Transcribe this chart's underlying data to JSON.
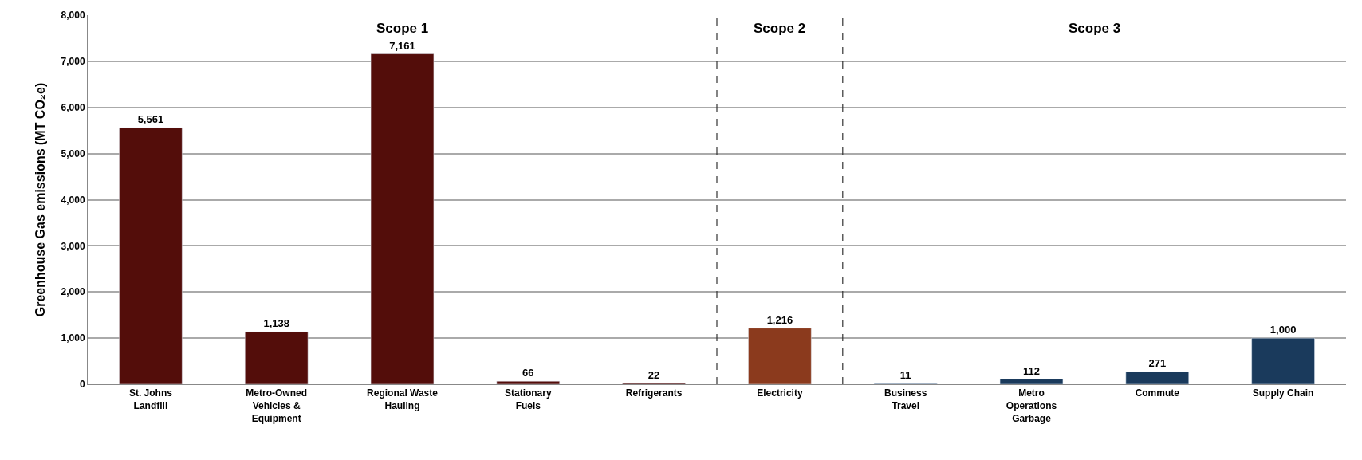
{
  "chart_data": {
    "type": "bar",
    "ylabel": "Greenhouse Gas emissions (MT CO₂e)",
    "categories": [
      "St. Johns Landfill",
      "Metro-Owned Vehicles & Equipment",
      "Regional Waste Hauling",
      "Stationary Fuels",
      "Refrigerants",
      "Electricity",
      "Business Travel",
      "Metro Operations Garbage",
      "Commute",
      "Supply Chain"
    ],
    "values": [
      5561,
      1138,
      7161,
      66,
      22,
      1216,
      11,
      112,
      271,
      1000
    ],
    "colors": [
      "#530d0a",
      "#530d0a",
      "#530d0a",
      "#530d0a",
      "#530d0a",
      "#8b3a1d",
      "#1a3a5c",
      "#1a3a5c",
      "#1a3a5c",
      "#1a3a5c"
    ],
    "value_labels": [
      "5,561",
      "1,138",
      "7,161",
      "66",
      "22",
      "1,216",
      "11",
      "112",
      "271",
      "1,000"
    ],
    "ylim": [
      0,
      8000
    ],
    "yticks": [
      {
        "value": 0,
        "label": "0"
      },
      {
        "value": 1000,
        "label": "1,000"
      },
      {
        "value": 2000,
        "label": "2,000"
      },
      {
        "value": 3000,
        "label": "3,000"
      },
      {
        "value": 4000,
        "label": "4,000"
      },
      {
        "value": 5000,
        "label": "5,000"
      },
      {
        "value": 6000,
        "label": "6,000"
      },
      {
        "value": 7000,
        "label": "7,000"
      },
      {
        "value": 8000,
        "label": "8,000"
      }
    ],
    "grid": "y",
    "annotations": [
      "Scope 1",
      "Scope 2",
      "Scope 3"
    ]
  }
}
